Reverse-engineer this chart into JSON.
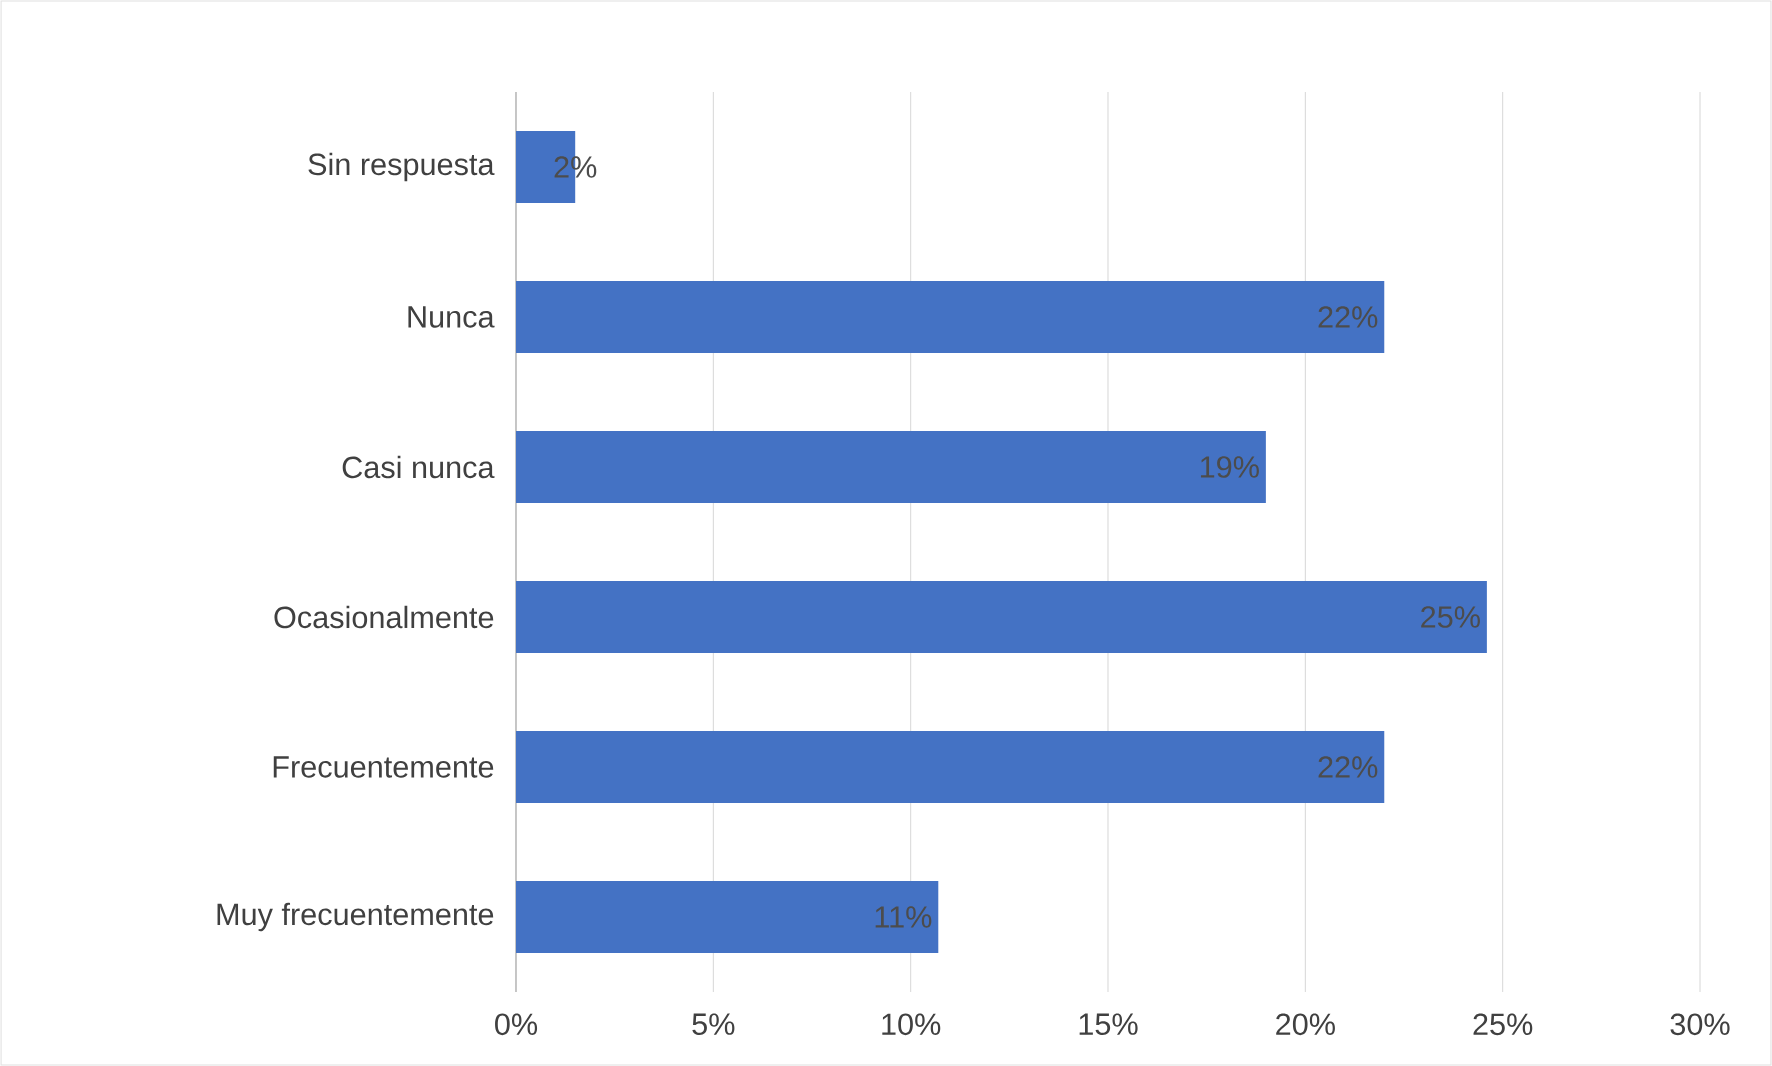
{
  "chart_data": {
    "type": "bar",
    "orientation": "horizontal",
    "categories": [
      "Sin respuesta",
      "Nunca",
      "Casi nunca",
      "Ocasionalmente",
      "Frecuentemente",
      "Muy frecuentemente"
    ],
    "values": [
      1.5,
      22.0,
      19.0,
      24.6,
      22.0,
      10.7
    ],
    "value_labels": [
      "2%",
      "22%",
      "19%",
      "25%",
      "22%",
      "11%"
    ],
    "color": "#4472c4",
    "xlim": [
      0,
      30
    ],
    "xticks": [
      {
        "value": 0,
        "label": "0%"
      },
      {
        "value": 5,
        "label": "5%"
      },
      {
        "value": 10,
        "label": "10%"
      },
      {
        "value": 15,
        "label": "15%"
      },
      {
        "value": 20,
        "label": "20%"
      },
      {
        "value": 25,
        "label": "25%"
      },
      {
        "value": 30,
        "label": "30%"
      }
    ],
    "grid": "x"
  }
}
